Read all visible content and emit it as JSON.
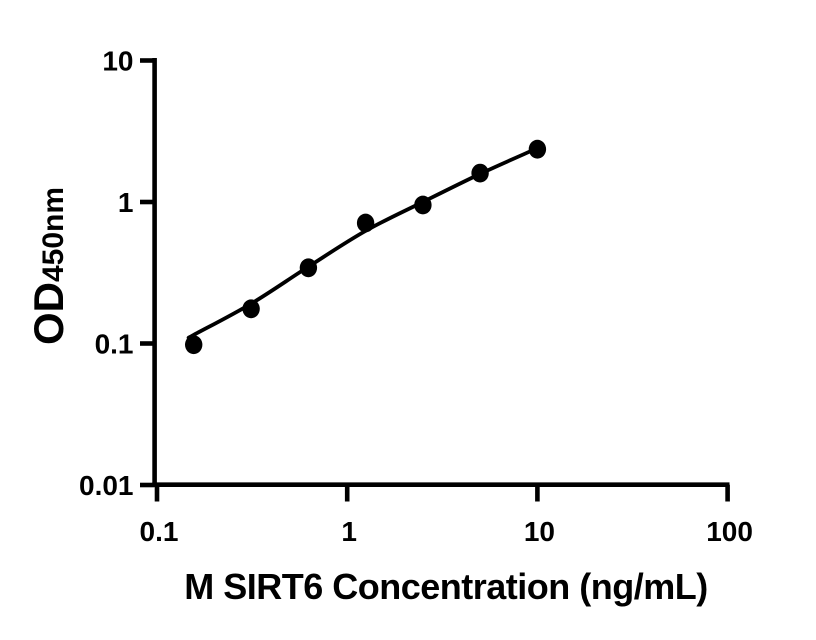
{
  "figure": {
    "background_color": "#ffffff",
    "ink_color": "#000000"
  },
  "chart_data": {
    "type": "scatter",
    "title": "",
    "xlabel": "M SIRT6 Concentration (ng/mL)",
    "ylabel_main": "OD",
    "ylabel_sub": "450nm",
    "x_scale": "log",
    "y_scale": "log",
    "xlim": [
      0.1,
      100
    ],
    "ylim": [
      0.01,
      10
    ],
    "x_ticks": [
      0.1,
      1,
      10,
      100
    ],
    "x_tick_labels": [
      "0.1",
      "1",
      "10",
      "100"
    ],
    "y_ticks": [
      0.01,
      0.1,
      1,
      10
    ],
    "y_tick_labels": [
      "0.01",
      "0.1",
      "1",
      "10"
    ],
    "grid": false,
    "legend": "none",
    "series": [
      {
        "name": "fit-curve",
        "type": "line",
        "color": "#000000",
        "x": [
          0.151,
          0.156,
          0.3125,
          0.625,
          1.25,
          2.5,
          5,
          10
        ],
        "y": [
          0.112,
          0.115,
          0.191,
          0.349,
          0.625,
          1.0,
          1.58,
          2.4
        ]
      },
      {
        "name": "standard-points",
        "type": "scatter",
        "marker": "filled-circle",
        "color": "#000000",
        "x": [
          0.156,
          0.3125,
          0.625,
          1.25,
          2.5,
          5,
          10
        ],
        "y": [
          0.098,
          0.176,
          0.343,
          0.711,
          0.953,
          1.6,
          2.36
        ]
      }
    ]
  }
}
